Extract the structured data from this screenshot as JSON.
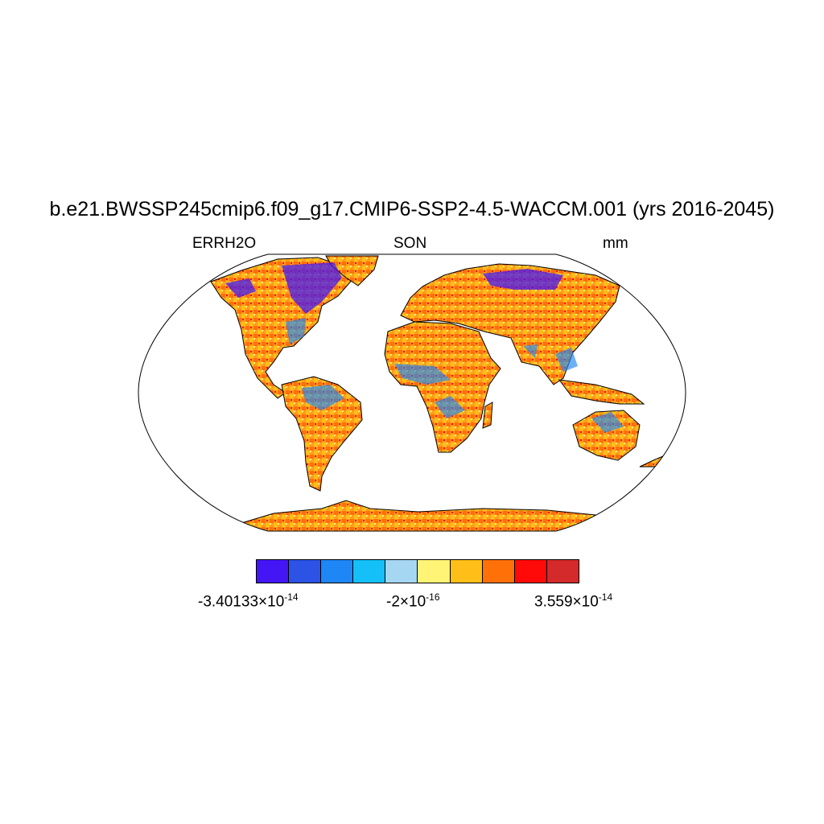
{
  "title": "b.e21.BWSSP245cmip6.f09_g17.CMIP6-SSP2-4.5-WACCM.001 (yrs 2016-2045)",
  "left_label": "ERRH2O",
  "center_label": "SON",
  "right_label": "mm",
  "map": {
    "projection": "Robinson",
    "land_dominant_color": "#ff9d1e",
    "ocean_color": "#ffffff",
    "outline_color": "#000000"
  },
  "colorbar": {
    "colors": [
      "#4416f5",
      "#2d52e6",
      "#1f86f5",
      "#14c0f7",
      "#a6d7f2",
      "#fff476",
      "#ffbe18",
      "#ff7009",
      "#ff0a08",
      "#d52a2b"
    ],
    "labels": [
      {
        "mantissa": "-3.40133",
        "times": "×",
        "base": "10",
        "exponent": "-14"
      },
      {
        "mantissa": "-2",
        "times": "×",
        "base": "10",
        "exponent": "-16"
      },
      {
        "mantissa": "3.559",
        "times": "×",
        "base": "10",
        "exponent": "-14"
      }
    ]
  }
}
